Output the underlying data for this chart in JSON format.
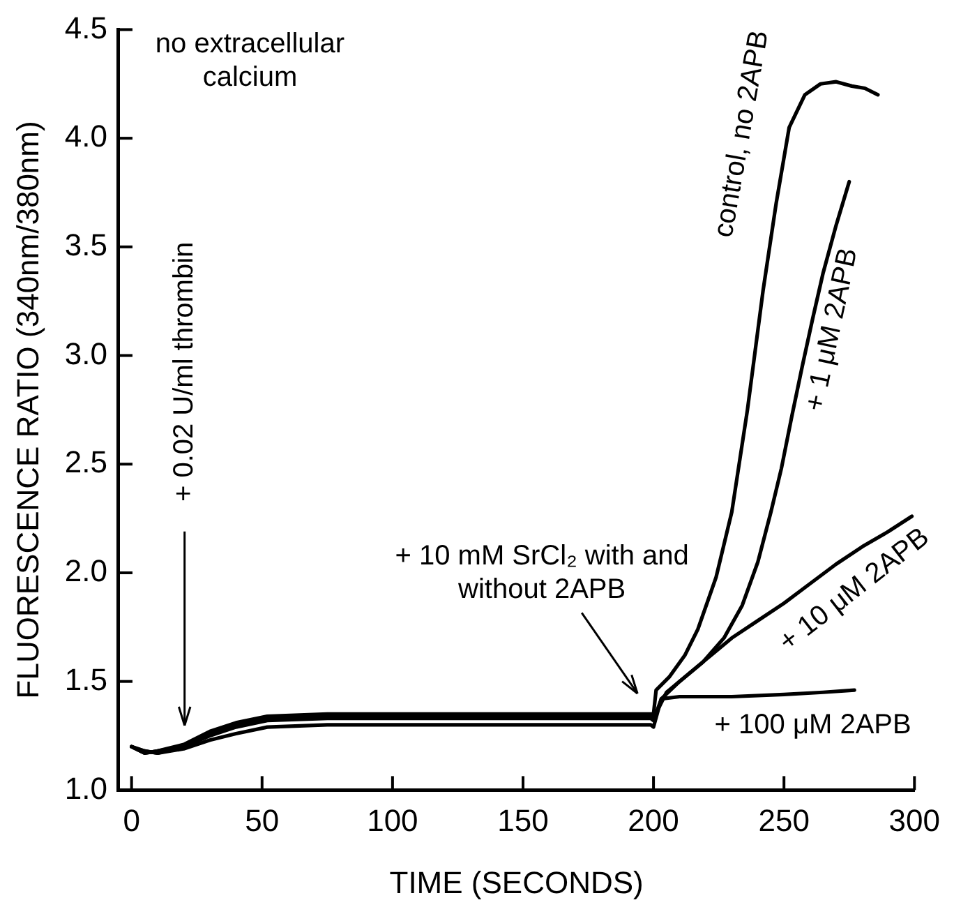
{
  "chart_data": {
    "type": "line",
    "xlabel": "TIME (SECONDS)",
    "ylabel": "FLUORESCENCE RATIO (340nm/380nm)",
    "xlim": [
      -5,
      300
    ],
    "xticks": [
      0,
      50,
      100,
      150,
      200,
      250,
      300
    ],
    "ylim": [
      1,
      4.5
    ],
    "yticks": [
      {
        "value": 1,
        "label": "1.0"
      },
      {
        "value": 1.5,
        "label": "1.5"
      },
      {
        "value": 2,
        "label": "2.0"
      },
      {
        "value": 2.5,
        "label": "2.5"
      },
      {
        "value": 3,
        "label": "3.0"
      },
      {
        "value": 3.5,
        "label": "3.5"
      },
      {
        "value": 4,
        "label": "4.0"
      },
      {
        "value": 4.5,
        "label": "4.5"
      }
    ],
    "grid": false,
    "legend": false,
    "marker": "none",
    "line_style": "solid",
    "series": [
      {
        "color": "#000000",
        "x": [
          0,
          5,
          10,
          20,
          30,
          40,
          52,
          75,
          100,
          150,
          199,
          200,
          201,
          206,
          212,
          217,
          224,
          230,
          236,
          242,
          247,
          252,
          258,
          264,
          270,
          276,
          281,
          286
        ],
        "values": [
          1.2,
          1.17,
          1.18,
          1.21,
          1.27,
          1.31,
          1.34,
          1.35,
          1.35,
          1.35,
          1.35,
          1.35,
          1.46,
          1.52,
          1.62,
          1.74,
          1.98,
          2.28,
          2.75,
          3.3,
          3.7,
          4.05,
          4.2,
          4.25,
          4.26,
          4.24,
          4.23,
          4.2
        ]
      },
      {
        "color": "#000000",
        "x": [
          0,
          5,
          10,
          20,
          30,
          40,
          52,
          75,
          100,
          150,
          199,
          200,
          205,
          212,
          219,
          227,
          234,
          240,
          245,
          249,
          253,
          257,
          261,
          265,
          270,
          275
        ],
        "values": [
          1.2,
          1.18,
          1.17,
          1.2,
          1.26,
          1.3,
          1.33,
          1.34,
          1.34,
          1.34,
          1.34,
          1.33,
          1.45,
          1.52,
          1.59,
          1.7,
          1.85,
          2.05,
          2.28,
          2.48,
          2.72,
          2.95,
          3.17,
          3.38,
          3.6,
          3.8
        ]
      },
      {
        "color": "#000000",
        "x": [
          0,
          5,
          10,
          20,
          30,
          40,
          52,
          75,
          100,
          150,
          199,
          200,
          203,
          210,
          220,
          230,
          240,
          250,
          260,
          270,
          280,
          290,
          299
        ],
        "values": [
          1.2,
          1.17,
          1.18,
          1.2,
          1.25,
          1.29,
          1.32,
          1.33,
          1.33,
          1.33,
          1.33,
          1.32,
          1.42,
          1.5,
          1.6,
          1.7,
          1.78,
          1.86,
          1.95,
          2.04,
          2.12,
          2.19,
          2.26
        ]
      },
      {
        "color": "#000000",
        "x": [
          0,
          5,
          10,
          20,
          30,
          40,
          52,
          75,
          100,
          150,
          199,
          200,
          203,
          210,
          230,
          250,
          265,
          277
        ],
        "values": [
          1.2,
          1.18,
          1.17,
          1.19,
          1.23,
          1.26,
          1.29,
          1.3,
          1.3,
          1.3,
          1.3,
          1.29,
          1.42,
          1.43,
          1.43,
          1.44,
          1.45,
          1.46
        ]
      }
    ],
    "annotations": [
      "no extracellular calcium",
      "+ 0.02 U/ml thrombin",
      "+ 10 mM SrCl₂ with and without 2APB",
      {
        "text": "control, no 2APB",
        "x": 250,
        "y": 4.0
      },
      {
        "text": "+ 1 μM 2APB",
        "x": 261,
        "y": 3.17
      },
      {
        "text": "+ 10 μM 2APB",
        "x": 277,
        "y": 2.1
      },
      {
        "text": "+ 100 μM 2APB",
        "x": 260,
        "y": 1.45
      }
    ]
  }
}
